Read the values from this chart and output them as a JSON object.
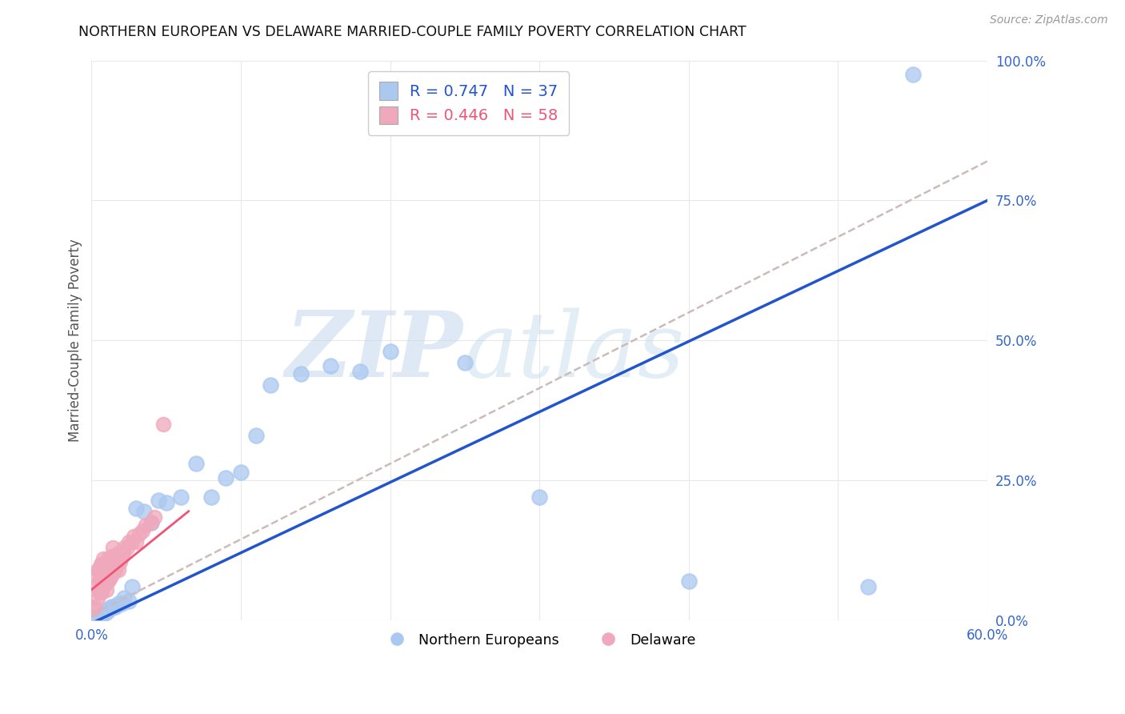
{
  "title": "NORTHERN EUROPEAN VS DELAWARE MARRIED-COUPLE FAMILY POVERTY CORRELATION CHART",
  "source": "Source: ZipAtlas.com",
  "ylabel": "Married-Couple Family Poverty",
  "watermark_zip": "ZIP",
  "watermark_atlas": "atlas",
  "xlim": [
    0.0,
    0.6
  ],
  "ylim": [
    0.0,
    1.0
  ],
  "xtick_positions": [
    0.0,
    0.1,
    0.2,
    0.3,
    0.4,
    0.5,
    0.6
  ],
  "xticklabels": [
    "0.0%",
    "",
    "",
    "",
    "",
    "",
    "60.0%"
  ],
  "ytick_positions": [
    0.0,
    0.25,
    0.5,
    0.75,
    1.0
  ],
  "yticklabels": [
    "0.0%",
    "25.0%",
    "50.0%",
    "75.0%",
    "100.0%"
  ],
  "blue_R": "0.747",
  "blue_N": "37",
  "pink_R": "0.446",
  "pink_N": "58",
  "blue_scatter_color": "#aac8f0",
  "pink_scatter_color": "#f0a8bc",
  "blue_line_color": "#2255cc",
  "pink_line_color": "#ee5577",
  "dashed_line_color": "#ccbbbb",
  "legend_blue_label": "Northern Europeans",
  "legend_pink_label": "Delaware",
  "tick_label_color": "#3366cc",
  "ylabel_color": "#555555",
  "title_color": "#111111",
  "source_color": "#999999",
  "grid_color": "#e8e8e8",
  "blue_scatter_x": [
    0.003,
    0.005,
    0.007,
    0.008,
    0.009,
    0.01,
    0.011,
    0.012,
    0.013,
    0.015,
    0.016,
    0.018,
    0.02,
    0.022,
    0.025,
    0.027,
    0.03,
    0.035,
    0.04,
    0.045,
    0.05,
    0.06,
    0.07,
    0.08,
    0.09,
    0.1,
    0.11,
    0.12,
    0.14,
    0.16,
    0.18,
    0.2,
    0.25,
    0.3,
    0.4,
    0.52,
    0.55
  ],
  "blue_scatter_y": [
    0.005,
    0.008,
    0.01,
    0.012,
    0.015,
    0.015,
    0.02,
    0.02,
    0.025,
    0.025,
    0.025,
    0.03,
    0.03,
    0.04,
    0.035,
    0.06,
    0.2,
    0.195,
    0.175,
    0.215,
    0.21,
    0.22,
    0.28,
    0.22,
    0.255,
    0.265,
    0.33,
    0.42,
    0.44,
    0.455,
    0.445,
    0.48,
    0.46,
    0.22,
    0.07,
    0.06,
    0.975
  ],
  "pink_scatter_x": [
    0.001,
    0.002,
    0.003,
    0.003,
    0.004,
    0.004,
    0.005,
    0.005,
    0.005,
    0.006,
    0.006,
    0.006,
    0.007,
    0.007,
    0.007,
    0.008,
    0.008,
    0.008,
    0.008,
    0.009,
    0.009,
    0.009,
    0.01,
    0.01,
    0.01,
    0.011,
    0.011,
    0.011,
    0.012,
    0.012,
    0.013,
    0.013,
    0.013,
    0.014,
    0.014,
    0.014,
    0.015,
    0.015,
    0.016,
    0.016,
    0.017,
    0.018,
    0.018,
    0.019,
    0.02,
    0.021,
    0.022,
    0.024,
    0.025,
    0.027,
    0.028,
    0.03,
    0.032,
    0.034,
    0.036,
    0.04,
    0.042,
    0.048
  ],
  "pink_scatter_y": [
    0.02,
    0.025,
    0.06,
    0.08,
    0.04,
    0.09,
    0.05,
    0.07,
    0.09,
    0.06,
    0.08,
    0.1,
    0.05,
    0.07,
    0.1,
    0.06,
    0.075,
    0.09,
    0.11,
    0.065,
    0.08,
    0.1,
    0.055,
    0.075,
    0.095,
    0.07,
    0.085,
    0.11,
    0.075,
    0.1,
    0.08,
    0.095,
    0.115,
    0.085,
    0.1,
    0.13,
    0.095,
    0.115,
    0.09,
    0.11,
    0.1,
    0.09,
    0.12,
    0.105,
    0.115,
    0.12,
    0.13,
    0.13,
    0.14,
    0.14,
    0.15,
    0.14,
    0.155,
    0.16,
    0.17,
    0.175,
    0.185,
    0.35
  ],
  "blue_line_x0": 0.0,
  "blue_line_y0": -0.005,
  "blue_line_x1": 0.6,
  "blue_line_y1": 0.75,
  "dashed_line_x0": 0.0,
  "dashed_line_y0": 0.01,
  "dashed_line_x1": 0.6,
  "dashed_line_y1": 0.82,
  "pink_line_x0": 0.0,
  "pink_line_y0": 0.055,
  "pink_line_x1": 0.065,
  "pink_line_y1": 0.195
}
